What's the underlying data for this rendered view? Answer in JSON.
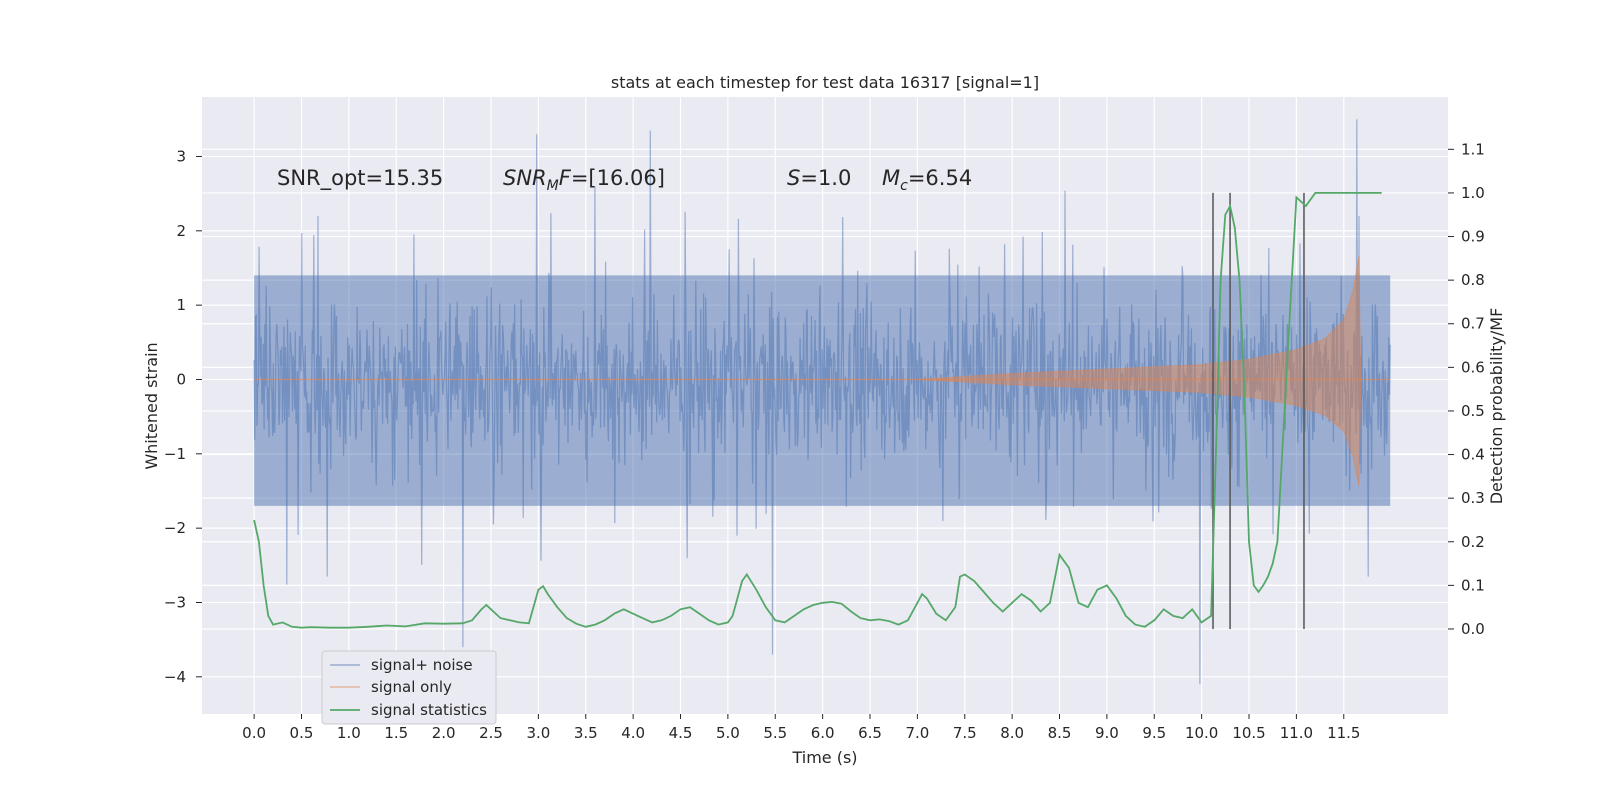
{
  "chart_data": {
    "type": "line",
    "title": "stats at each timestep for test data 16317 [signal=1]",
    "xlabel": "Time (s)",
    "ylabel": "Whitened strain",
    "y2label": "Detection probability/MF",
    "xlim": [
      -0.55,
      12.6
    ],
    "ylim": [
      -4.5,
      3.8
    ],
    "y2lim": [
      -0.195,
      1.22
    ],
    "xticks": [
      0.0,
      0.5,
      1.0,
      1.5,
      2.0,
      2.5,
      3.0,
      3.5,
      4.0,
      4.5,
      5.0,
      5.5,
      6.0,
      6.5,
      7.0,
      7.5,
      8.0,
      8.5,
      9.0,
      9.5,
      10.0,
      10.5,
      11.0,
      11.5
    ],
    "xtick_labels": [
      "0.0",
      "0.5",
      "1.0",
      "1.5",
      "2.0",
      "2.5",
      "3.0",
      "3.5",
      "4.0",
      "4.5",
      "5.0",
      "5.5",
      "6.0",
      "6.5",
      "7.0",
      "7.5",
      "8.0",
      "8.5",
      "9.0",
      "9.5",
      "10.0",
      "10.5",
      "11.0",
      "11.5"
    ],
    "yticks": [
      3,
      2,
      1,
      0,
      -1,
      -2,
      -3,
      -4
    ],
    "ytick_labels": [
      "3",
      "2",
      "1",
      "0",
      "−1",
      "−2",
      "−3",
      "−4"
    ],
    "y2ticks": [
      1.1,
      1.0,
      0.9,
      0.8,
      0.7,
      0.6,
      0.5,
      0.4,
      0.3,
      0.2,
      0.1,
      0.0
    ],
    "y2tick_labels": [
      "1.1",
      "1.0",
      "0.9",
      "0.8",
      "0.7",
      "0.6",
      "0.5",
      "0.4",
      "0.3",
      "0.2",
      "0.1",
      "0.0"
    ],
    "grid": true,
    "legend_position": "lower-left",
    "series": [
      {
        "name": "signal+ noise",
        "color": "#4c72b0",
        "axis": "left",
        "description_values": {
          "x_range": [
            0.0,
            11.99
          ],
          "envelope_upper": 1.4,
          "envelope_lower": -1.7,
          "peaks_max": [
            [
              2.98,
              3.3
            ],
            [
              4.18,
              3.35
            ],
            [
              11.64,
              3.5
            ]
          ],
          "peaks_min": [
            [
              2.2,
              -3.6
            ],
            [
              5.47,
              -3.7
            ],
            [
              9.98,
              -4.1
            ]
          ]
        }
      },
      {
        "name": "signal only",
        "color": "#dd8452",
        "axis": "left",
        "description_values": {
          "x_range": [
            0.0,
            11.99
          ],
          "onset_time": 7.0,
          "amplitude_points": [
            [
              7.0,
              0.0
            ],
            [
              8.0,
              0.08
            ],
            [
              9.0,
              0.14
            ],
            [
              10.0,
              0.2
            ],
            [
              10.5,
              0.27
            ],
            [
              11.0,
              0.4
            ],
            [
              11.3,
              0.55
            ],
            [
              11.5,
              0.8
            ],
            [
              11.6,
              1.2
            ],
            [
              11.66,
              1.65
            ],
            [
              11.68,
              0.0
            ]
          ]
        }
      },
      {
        "name": "signal statistics",
        "color": "#55a868",
        "axis": "right",
        "x": [
          0.0,
          0.05,
          0.1,
          0.15,
          0.2,
          0.3,
          0.4,
          0.5,
          0.6,
          0.8,
          1.0,
          1.2,
          1.4,
          1.6,
          1.8,
          2.0,
          2.2,
          2.3,
          2.4,
          2.45,
          2.5,
          2.6,
          2.7,
          2.8,
          2.9,
          3.0,
          3.05,
          3.1,
          3.2,
          3.3,
          3.4,
          3.5,
          3.6,
          3.7,
          3.8,
          3.9,
          4.0,
          4.1,
          4.2,
          4.3,
          4.4,
          4.5,
          4.6,
          4.7,
          4.8,
          4.9,
          5.0,
          5.05,
          5.1,
          5.15,
          5.2,
          5.3,
          5.4,
          5.5,
          5.6,
          5.7,
          5.8,
          5.9,
          6.0,
          6.1,
          6.2,
          6.3,
          6.4,
          6.5,
          6.6,
          6.7,
          6.8,
          6.9,
          7.0,
          7.05,
          7.1,
          7.2,
          7.3,
          7.4,
          7.45,
          7.5,
          7.6,
          7.7,
          7.8,
          7.9,
          8.0,
          8.1,
          8.2,
          8.3,
          8.4,
          8.5,
          8.6,
          8.7,
          8.8,
          8.9,
          9.0,
          9.1,
          9.2,
          9.3,
          9.4,
          9.5,
          9.6,
          9.7,
          9.8,
          9.9,
          10.0,
          10.1,
          10.15,
          10.2,
          10.25,
          10.3,
          10.35,
          10.4,
          10.45,
          10.5,
          10.55,
          10.6,
          10.65,
          10.7,
          10.75,
          10.8,
          10.9,
          11.0,
          11.1,
          11.2,
          11.3,
          11.5,
          11.7,
          11.9
        ],
        "values": [
          0.25,
          0.2,
          0.1,
          0.03,
          0.01,
          0.015,
          0.005,
          0.003,
          0.004,
          0.003,
          0.003,
          0.005,
          0.008,
          0.006,
          0.013,
          0.012,
          0.013,
          0.02,
          0.045,
          0.055,
          0.045,
          0.025,
          0.02,
          0.015,
          0.013,
          0.09,
          0.098,
          0.08,
          0.05,
          0.025,
          0.012,
          0.005,
          0.01,
          0.02,
          0.035,
          0.045,
          0.035,
          0.025,
          0.015,
          0.02,
          0.03,
          0.045,
          0.05,
          0.035,
          0.02,
          0.01,
          0.015,
          0.03,
          0.07,
          0.11,
          0.125,
          0.09,
          0.05,
          0.02,
          0.015,
          0.03,
          0.045,
          0.055,
          0.06,
          0.062,
          0.058,
          0.04,
          0.025,
          0.02,
          0.022,
          0.018,
          0.01,
          0.02,
          0.06,
          0.08,
          0.07,
          0.035,
          0.02,
          0.05,
          0.12,
          0.125,
          0.11,
          0.085,
          0.06,
          0.04,
          0.06,
          0.08,
          0.065,
          0.04,
          0.06,
          0.17,
          0.14,
          0.06,
          0.05,
          0.09,
          0.1,
          0.07,
          0.03,
          0.01,
          0.005,
          0.02,
          0.045,
          0.03,
          0.025,
          0.045,
          0.015,
          0.03,
          0.4,
          0.8,
          0.95,
          0.97,
          0.92,
          0.8,
          0.55,
          0.2,
          0.1,
          0.085,
          0.1,
          0.12,
          0.15,
          0.2,
          0.6,
          0.99,
          0.97,
          1.0,
          1.0,
          1.0,
          1.0,
          1.0
        ]
      }
    ],
    "vlines": [
      10.12,
      10.3,
      11.08
    ],
    "vline_ylim": [
      0.0,
      1.0
    ],
    "annotations": [
      {
        "text": "SNR_opt=15.35"
      },
      {
        "text_main": "SNR",
        "text_sub": "M",
        "text_rest": "F=[16.06]"
      },
      {
        "text_main": "S",
        "text_rest": "=1.0"
      },
      {
        "text_main": "M",
        "text_sub": "c",
        "text_rest": "=6.54"
      }
    ],
    "legend": [
      "signal+ noise",
      "signal only",
      "signal statistics"
    ]
  }
}
